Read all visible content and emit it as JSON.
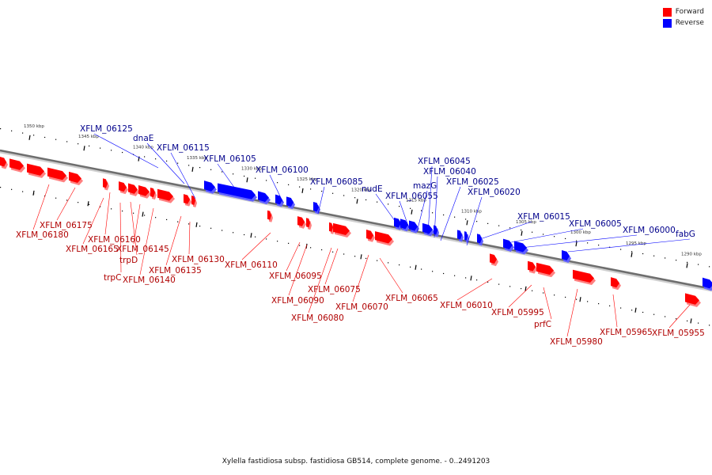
{
  "legend": {
    "forward": {
      "label": "Forward",
      "color": "#ff0000"
    },
    "reverse": {
      "label": "Reverse",
      "color": "#0000ff"
    }
  },
  "caption": "Xylella fastidiosa subsp. fastidiosa GB514, complete genome. - 0..2491203",
  "scale": {
    "ticks": [
      "1350 kbp",
      "1345 kbp",
      "1340 kbp",
      "1335 kbp",
      "1330 kbp",
      "1325 kbp",
      "1320 kbp",
      "1315 kbp",
      "1310 kbp",
      "1305 kbp",
      "1300 kbp",
      "1295 kbp",
      "1290 kbp"
    ]
  },
  "genes": {
    "reverse": [
      "XFLM_06125",
      "dnaE",
      "XFLM_06115",
      "XFLM_06105",
      "XFLM_06100",
      "XFLM_06085",
      "nudE",
      "XFLM_06055",
      "mazG",
      "XFLM_06045",
      "XFLM_06040",
      "XFLM_06025",
      "XFLM_06020",
      "XFLM_06015",
      "XFLM_06005",
      "XFLM_06000",
      "fabG"
    ],
    "forward": [
      "XFLM_06175",
      "XFLM_06180",
      "XFLM_06160",
      "XFLM_06165",
      "XFLM_06145",
      "trpD",
      "trpC",
      "XFLM_06140",
      "XFLM_06135",
      "XFLM_06130",
      "XFLM_06110",
      "XFLM_06095",
      "XFLM_06090",
      "XFLM_06075",
      "XFLM_06080",
      "XFLM_06070",
      "XFLM_06065",
      "XFLM_06010",
      "XFLM_05995",
      "prfC",
      "XFLM_05980",
      "XFLM_05965",
      "XFLM_05955"
    ]
  }
}
